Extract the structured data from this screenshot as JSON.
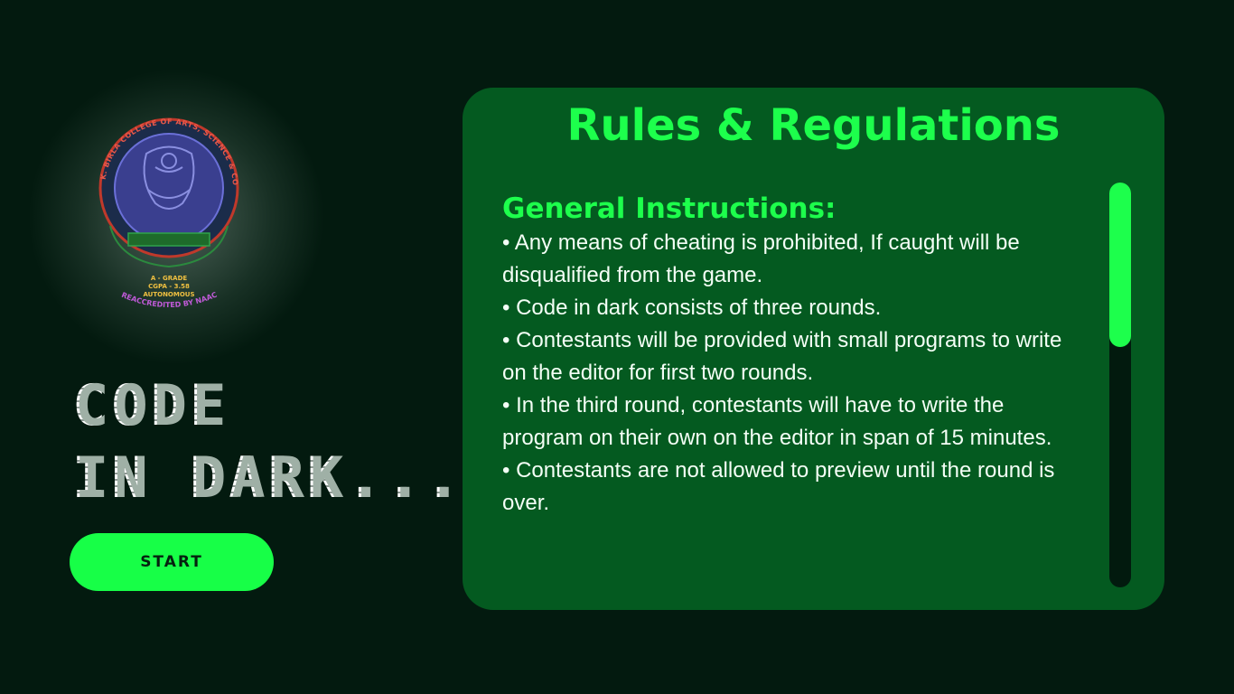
{
  "logo": {
    "icon": "college-seal-logo",
    "arc_text": "K. BIRLA COLLEGE OF ARTS, SCIENCE & COMMERCE",
    "grade_lines": [
      "A - GRADE",
      "CGPA - 3.58",
      "AUTONOMOUS"
    ],
    "bottom_text": "REACCREDITED BY NAAC"
  },
  "title": {
    "line1": "CODE",
    "line2": "IN DARK..."
  },
  "start_button": {
    "label": "START",
    "color": "#17ff47"
  },
  "rules_panel": {
    "title": "Rules & Regulations",
    "section_heading": "General Instructions:",
    "items": [
      "• Any means of cheating is prohibited, If caught will be disqualified from the game.",
      "• Code in dark consists of   three rounds.",
      "• Contestants will be provided with small programs to write on the editor for first two rounds.",
      "• In the third round, contestants will have to write the program on their own on the editor in span of 15 minutes.",
      "• Contestants are not allowed to preview until the round is over."
    ],
    "accent_color": "#1dff4c",
    "panel_color": "#045a20",
    "scroll_position": 0.0
  }
}
